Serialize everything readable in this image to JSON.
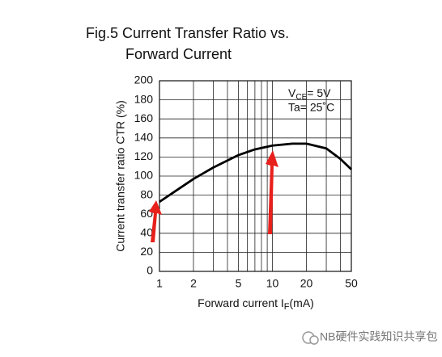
{
  "chart_data": {
    "type": "line",
    "title": [
      "Fig.5 Current Transfer Ratio vs.",
      "Forward Current"
    ],
    "x_label": {
      "main": "Forward current I",
      "sub": "F",
      "rest": "(mA)"
    },
    "y_label": "Current transfer ratio CTR (%)",
    "conditions": {
      "vce": {
        "main": "V",
        "sub": "CE",
        "rest": "= 5V"
      },
      "ta": "Ta= 25˚C"
    },
    "x": [
      1,
      1.5,
      2,
      3,
      5,
      7,
      10,
      15,
      20,
      30,
      40,
      50
    ],
    "series": [
      {
        "color": "#000000",
        "values": [
          73,
          87,
          97,
          109,
          122,
          128,
          132,
          134,
          134,
          129,
          118,
          107
        ]
      }
    ],
    "log_x": true,
    "xlim": [
      1,
      50
    ],
    "xticks": [
      1,
      2,
      5,
      10,
      20,
      50
    ],
    "xminor": [
      3,
      4,
      6,
      7,
      8,
      9,
      30,
      40
    ],
    "ylim": [
      0,
      200
    ],
    "yticks": [
      0,
      20,
      40,
      60,
      80,
      100,
      120,
      140,
      160,
      180,
      200
    ],
    "grid": true,
    "watermark": "NB硬件实践知识共享包"
  }
}
